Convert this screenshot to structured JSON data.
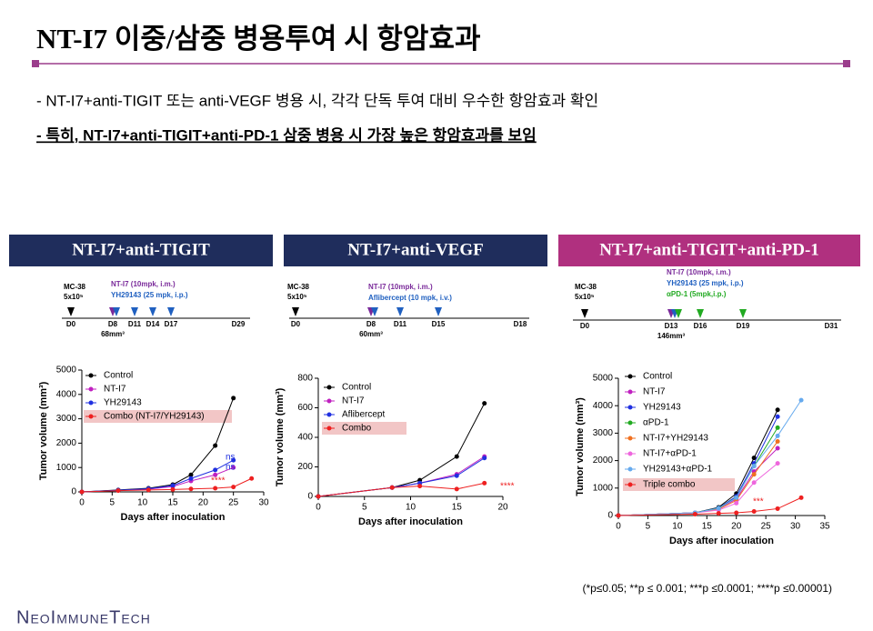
{
  "header": {
    "title": "NT-I7 이중/삼중 병용투여 시 항암효과"
  },
  "bullets": [
    "- NT-I7+anti-TIGIT 또는 anti-VEGF 병용 시, 각각 단독 투여 대비 우수한 항암효과 확인",
    "- 특히, NT-I7+anti-TIGIT+anti-PD-1 삼중 병용 시 가장 높은 항암효과를 보임"
  ],
  "panels": [
    {
      "title": "NT-I7+anti-TIGIT",
      "model": "MC-38",
      "cells": "5x10⁵",
      "treatments": [
        "NT-I7 (10mpk, i.m.)",
        "YH29143 (25 mpk, i.p.)"
      ],
      "days": [
        "D0",
        "D8",
        "D11",
        "D14",
        "D17",
        "D29"
      ],
      "volume": "68mm³"
    },
    {
      "title": "NT-I7+anti-VEGF",
      "model": "MC-38",
      "cells": "5x10⁵",
      "treatments": [
        "NT-I7 (10mpk, i.m.)",
        "Aflibercept (10 mpk, i.v.)"
      ],
      "days": [
        "D0",
        "D8",
        "D11",
        "D15",
        "D18"
      ],
      "volume": "60mm³"
    },
    {
      "title": "NT-I7+anti-TIGIT+anti-PD-1",
      "model": "MC-38",
      "cells": "5x10⁵",
      "treatments": [
        "NT-I7 (10mpk, i.m.)",
        "YH29143 (25 mpk, i.p.)",
        "αPD-1 (5mpk,i.p.)"
      ],
      "days": [
        "D0",
        "D13",
        "D16",
        "D19",
        "D31"
      ],
      "volume": "146mm³"
    }
  ],
  "chart_data": [
    {
      "type": "line",
      "x_label": "Days after inoculation",
      "y_label": "Tumor volume (mm³)",
      "x": [
        0,
        6,
        11,
        15,
        18,
        22,
        25,
        28
      ],
      "xlim": [
        0,
        30
      ],
      "xticks": [
        0,
        5,
        10,
        15,
        20,
        25,
        30
      ],
      "ylim": [
        0,
        5000
      ],
      "yticks": [
        0,
        1000,
        2000,
        3000,
        4000,
        5000
      ],
      "series": [
        {
          "name": "Control",
          "color": "#000000",
          "values": [
            0,
            80,
            150,
            300,
            700,
            1900,
            3850,
            null
          ]
        },
        {
          "name": "NT-I7",
          "color": "#c020c0",
          "values": [
            0,
            60,
            110,
            220,
            450,
            700,
            1000,
            null
          ]
        },
        {
          "name": "YH29143",
          "color": "#2030e0",
          "values": [
            0,
            70,
            130,
            260,
            550,
            900,
            1300,
            null
          ]
        },
        {
          "name": "Combo (NT-I7/YH29143)",
          "color": "#ee2020",
          "values": [
            0,
            50,
            80,
            100,
            120,
            150,
            200,
            550
          ]
        }
      ],
      "annotations": [
        "****",
        "ns",
        "ns"
      ]
    },
    {
      "type": "line",
      "x_label": "Days after inoculation",
      "y_label": "Tumor volume (mm³)",
      "x": [
        0,
        8,
        11,
        15,
        18
      ],
      "xlim": [
        0,
        20
      ],
      "xticks": [
        0,
        5,
        10,
        15,
        20
      ],
      "ylim": [
        0,
        800
      ],
      "yticks": [
        0,
        200,
        400,
        600,
        800
      ],
      "series": [
        {
          "name": "Control",
          "color": "#000000",
          "values": [
            0,
            60,
            110,
            270,
            630
          ]
        },
        {
          "name": "NT-I7",
          "color": "#c020c0",
          "values": [
            0,
            60,
            90,
            150,
            270
          ]
        },
        {
          "name": "Aflibercept",
          "color": "#2030e0",
          "values": [
            0,
            60,
            90,
            140,
            260
          ]
        },
        {
          "name": "Combo",
          "color": "#ee2020",
          "values": [
            0,
            60,
            70,
            50,
            90
          ]
        }
      ],
      "annotations": [
        "****"
      ]
    },
    {
      "type": "line",
      "x_label": "Days after inoculation",
      "y_label": "Tumor volume (mm³)",
      "x": [
        0,
        13,
        17,
        20,
        23,
        27,
        31
      ],
      "xlim": [
        0,
        35
      ],
      "xticks": [
        0,
        5,
        10,
        15,
        20,
        25,
        30,
        35
      ],
      "ylim": [
        0,
        5000
      ],
      "yticks": [
        0,
        1000,
        2000,
        3000,
        4000,
        5000
      ],
      "series": [
        {
          "name": "Control",
          "color": "#000000",
          "values": [
            0,
            100,
            300,
            800,
            2100,
            3850,
            null
          ]
        },
        {
          "name": "NT-I7",
          "color": "#c020c0",
          "values": [
            0,
            100,
            250,
            600,
            1600,
            2450,
            null
          ]
        },
        {
          "name": "YH29143",
          "color": "#2030e0",
          "values": [
            0,
            100,
            280,
            700,
            1900,
            3600,
            null
          ]
        },
        {
          "name": "αPD-1",
          "color": "#22aa22",
          "values": [
            0,
            100,
            270,
            650,
            1800,
            3200,
            null
          ]
        },
        {
          "name": "NT-I7+YH29143",
          "color": "#f07020",
          "values": [
            0,
            100,
            230,
            550,
            1500,
            2700,
            null
          ]
        },
        {
          "name": "NT-I7+αPD-1",
          "color": "#ee66dd",
          "values": [
            0,
            100,
            200,
            450,
            1200,
            1900,
            null
          ]
        },
        {
          "name": "YH29143+αPD-1",
          "color": "#66aaee",
          "values": [
            0,
            100,
            260,
            650,
            1800,
            2900,
            4200
          ]
        },
        {
          "name": "Triple combo",
          "color": "#ee2020",
          "values": [
            0,
            50,
            80,
            100,
            150,
            250,
            650
          ]
        }
      ],
      "annotations": [
        "***"
      ]
    }
  ],
  "footnote": "(*p≤0.05; **p ≤ 0.001; ***p ≤0.0001; ****p ≤0.00001)",
  "logo": "NeoImmuneTech"
}
